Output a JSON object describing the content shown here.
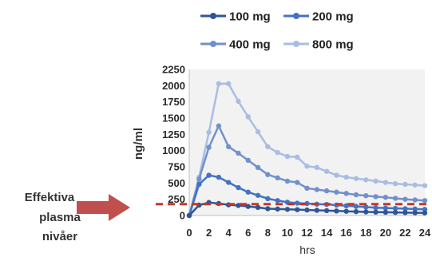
{
  "chart_data": {
    "type": "line",
    "xlabel": "hrs",
    "ylabel": "ng/ml",
    "xlim": [
      0,
      24
    ],
    "ylim": [
      0,
      2250
    ],
    "x_ticks": [
      0,
      2,
      4,
      6,
      8,
      10,
      12,
      14,
      16,
      18,
      20,
      22,
      24
    ],
    "y_ticks": [
      0,
      250,
      500,
      750,
      1000,
      1250,
      1500,
      1750,
      2000,
      2250
    ],
    "grid": false,
    "legend_position": "top",
    "x": [
      0,
      1,
      2,
      3,
      4,
      5,
      6,
      7,
      8,
      9,
      10,
      11,
      12,
      13,
      14,
      15,
      16,
      17,
      18,
      19,
      20,
      21,
      22,
      23,
      24
    ],
    "series": [
      {
        "name": "100 mg",
        "color": "#2f5694",
        "values": [
          0,
          160,
          200,
          185,
          165,
          155,
          140,
          125,
          105,
          100,
          95,
          90,
          85,
          80,
          75,
          70,
          65,
          60,
          55,
          52,
          50,
          48,
          45,
          42,
          40
        ]
      },
      {
        "name": "200 mg",
        "color": "#4472c4",
        "values": [
          0,
          480,
          620,
          590,
          510,
          430,
          360,
          310,
          260,
          230,
          205,
          190,
          185,
          175,
          170,
          160,
          150,
          140,
          130,
          120,
          115,
          110,
          105,
          100,
          95
        ]
      },
      {
        "name": "400 mg",
        "color": "#7290cb",
        "values": [
          0,
          560,
          1050,
          1380,
          1060,
          960,
          850,
          740,
          630,
          580,
          530,
          510,
          420,
          400,
          380,
          360,
          340,
          320,
          305,
          290,
          280,
          265,
          250,
          240,
          230
        ]
      },
      {
        "name": "800 mg",
        "color": "#a9bde3",
        "values": [
          0,
          590,
          1280,
          2030,
          2030,
          1760,
          1520,
          1290,
          1060,
          970,
          910,
          900,
          760,
          740,
          680,
          620,
          590,
          570,
          550,
          530,
          510,
          490,
          480,
          470,
          460
        ]
      }
    ],
    "threshold": {
      "value": 175,
      "color": "#c0392b"
    },
    "annotation": {
      "lines": [
        "Effektiva",
        "plasma",
        "nivåer"
      ],
      "arrow_color": "#c0504d"
    }
  }
}
